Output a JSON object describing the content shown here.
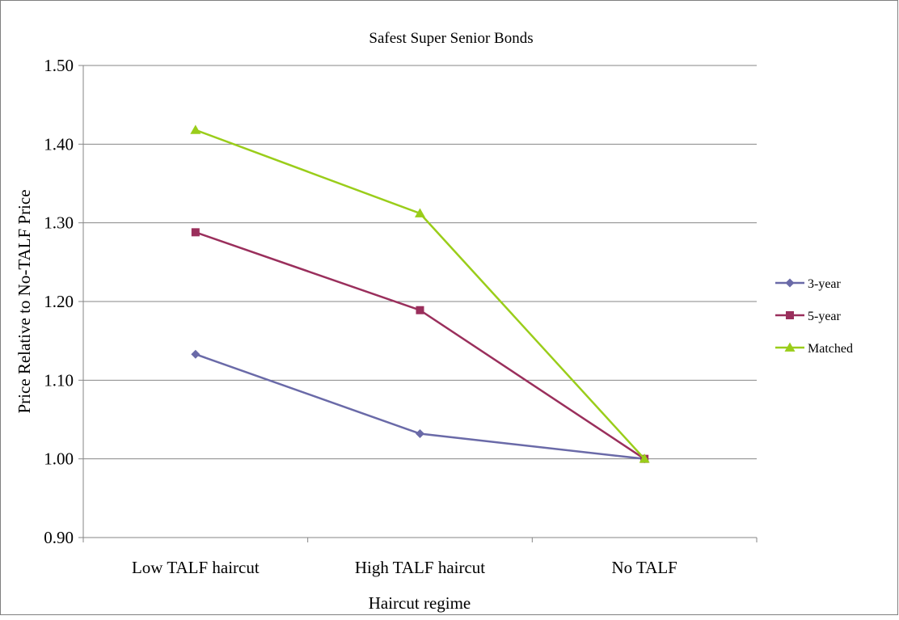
{
  "chart_data": {
    "type": "line",
    "title": "Safest Super Senior Bonds",
    "xlabel": "Haircut regime",
    "ylabel": "Price Relative to No-TALF Price",
    "categories": [
      "Low TALF haircut",
      "High TALF haircut",
      "No TALF"
    ],
    "ylim": [
      0.9,
      1.5
    ],
    "yticks": [
      "0.90",
      "1.00",
      "1.10",
      "1.20",
      "1.30",
      "1.40",
      "1.50"
    ],
    "grid": "horizontal",
    "legend_position": "right",
    "series": [
      {
        "name": "3-year",
        "values": [
          1.133,
          1.032,
          1.0
        ],
        "color": "#6a6aa8",
        "marker": "diamond"
      },
      {
        "name": "5-year",
        "values": [
          1.288,
          1.189,
          1.0
        ],
        "color": "#9a2f5c",
        "marker": "square"
      },
      {
        "name": "Matched",
        "values": [
          1.418,
          1.312,
          1.0
        ],
        "color": "#9acd1a",
        "marker": "triangle"
      }
    ]
  }
}
